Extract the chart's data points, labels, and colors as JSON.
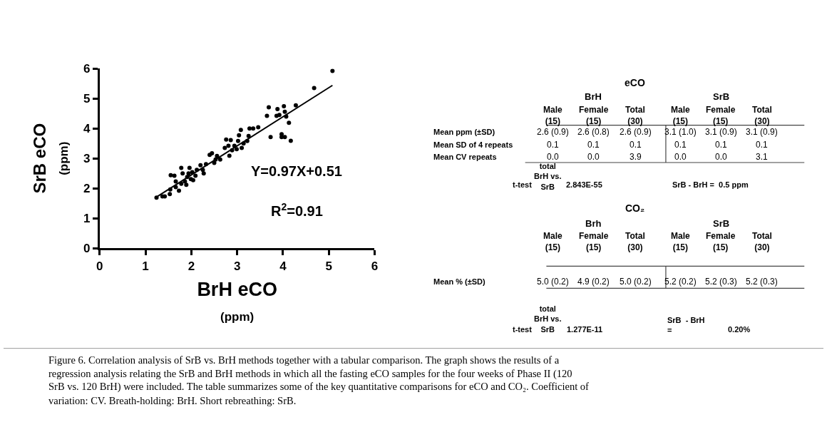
{
  "chart_data": [
    {
      "type": "scatter",
      "xlabel": "BrH eCO\n(ppm)",
      "ylabel": "SrB eCO\n(ppm)",
      "xlim": [
        0,
        6
      ],
      "ylim": [
        0,
        6
      ],
      "xticks": [
        0,
        1,
        2,
        3,
        4,
        5,
        6
      ],
      "yticks": [
        0,
        1,
        2,
        3,
        4,
        5,
        6
      ],
      "series": [
        {
          "type": "scatter",
          "color": "#000000",
          "marker": "circle",
          "x": [
            1.24,
            1.37,
            1.42,
            1.53,
            1.54,
            1.55,
            1.63,
            1.66,
            1.66,
            1.73,
            1.78,
            1.78,
            1.81,
            1.86,
            1.89,
            1.91,
            1.94,
            1.96,
            1.99,
            2.02,
            2.04,
            2.09,
            2.12,
            2.2,
            2.25,
            2.27,
            2.32,
            2.4,
            2.45,
            2.5,
            2.53,
            2.56,
            2.63,
            2.73,
            2.76,
            2.81,
            2.83,
            2.86,
            2.89,
            2.94,
            2.99,
            3.02,
            3.04,
            3.08,
            3.1,
            3.14,
            3.22,
            3.25,
            3.27,
            3.35,
            3.46,
            3.65,
            3.69,
            3.73,
            3.88,
            3.86,
            3.92,
            3.97,
            3.97,
            4.04,
            4.02,
            4.04,
            4.07,
            4.13,
            4.17,
            4.28,
            4.68,
            5.08
          ],
          "values": [
            1.69,
            1.73,
            1.73,
            1.81,
            1.96,
            2.44,
            2.42,
            2.23,
            2.04,
            1.92,
            2.15,
            2.68,
            2.5,
            2.23,
            2.12,
            2.38,
            2.5,
            2.68,
            2.31,
            2.54,
            2.27,
            2.42,
            2.62,
            2.77,
            2.62,
            2.5,
            2.81,
            3.12,
            3.17,
            2.85,
            2.96,
            3.08,
            2.96,
            3.35,
            3.63,
            3.42,
            3.09,
            3.61,
            3.27,
            3.42,
            3.31,
            3.58,
            3.77,
            3.95,
            3.35,
            3.5,
            3.58,
            3.75,
            4.0,
            4.0,
            4.04,
            4.42,
            4.71,
            3.71,
            4.65,
            4.42,
            4.45,
            3.81,
            3.71,
            3.71,
            4.74,
            4.56,
            4.4,
            4.19,
            3.59,
            4.77,
            5.35,
            5.92
          ]
        },
        {
          "type": "line",
          "color": "#000000",
          "x": [
            1.24,
            5.08
          ],
          "values": [
            1.71,
            5.44
          ]
        }
      ],
      "annotations": [
        "Y=0.97X+0.51",
        "R$^{2}$=0.91",
        "Figure 6. Correlation analysis of SrB vs. BrH methods together with a tabular comparison. The graph shows the results of a",
        "regression analysis relating the SrB and BrH methods in which all the fasting eCO samples for the four weeks of Phase II (120",
        "SrB vs. 120 BrH) were included. The table summarizes some of the key quantitative comparisons for eCO and CO₂. Coefficient of",
        "variation: CV. Breath-holding: BrH. Short rebreathing: SrB."
      ]
    },
    {
      "type": "other",
      "annotations": [
        "eCO",
        "BrH",
        "SrB",
        "Male\n(15)",
        "Female\n(15)",
        "Total\n(30)",
        "Male\n(15)",
        "Female\n(15)",
        "Total\n(30)",
        "Mean ppm (±SD)",
        "2.6 (0.9)",
        "2.6 (0.8)",
        "2.6 (0.9)",
        "3.1 (1.0)",
        "3.1 (0.9)",
        "3.1 (0.9)",
        "Mean SD of 4 repeats",
        "0.1",
        "0.1",
        "0.1",
        "0.1",
        "0.1",
        "0.1",
        "Mean CV repeats",
        "0.0",
        "0.0",
        "3.9",
        "0.0",
        "0.0",
        "3.1",
        "total\nBrH vs.\nSrB",
        "t-test",
        "2.843E-55",
        "SrB - BrH =  0.5 ppm",
        "CO₂",
        "Brh",
        "SrB",
        "Male\n(15)",
        "Female\n(15)",
        "Total\n(30)",
        "Male\n(15)",
        "Female\n(15)",
        "Total\n(30)",
        "Mean % (±SD)",
        "5.0 (0.2)",
        "4.9 (0.2)",
        "5.0 (0.2)",
        "5.2 (0.2)",
        "5.2 (0.3)",
        "5.2 (0.3)",
        "total\nBrH vs.\nSrB",
        "t-test",
        "1.277E-11",
        "SrB  - BrH\n=",
        "0.20%"
      ]
    }
  ]
}
